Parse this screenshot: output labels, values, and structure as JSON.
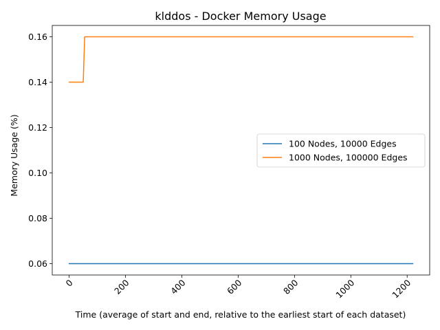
{
  "chart_data": {
    "type": "line",
    "title": "klddos - Docker Memory Usage",
    "xlabel": "Time (average of start and end, relative to the earliest start of each dataset)",
    "ylabel": "Memory Usage (%)",
    "xlim": [
      -60,
      1280
    ],
    "ylim": [
      0.055,
      0.165
    ],
    "xticks": [
      0,
      200,
      400,
      600,
      800,
      1000,
      1200
    ],
    "xtick_labels": [
      "0",
      "200",
      "400",
      "600",
      "800",
      "1000",
      "1200"
    ],
    "yticks": [
      0.06,
      0.08,
      0.1,
      0.12,
      0.14,
      0.16
    ],
    "ytick_labels": [
      "0.06",
      "0.08",
      "0.10",
      "0.12",
      "0.14",
      "0.16"
    ],
    "grid": false,
    "legend_position": "center-right",
    "series": [
      {
        "name": "100 Nodes, 10000 Edges",
        "color": "#1f77b4",
        "x": [
          0,
          1220
        ],
        "y": [
          0.06,
          0.06
        ]
      },
      {
        "name": "1000 Nodes, 100000 Edges",
        "color": "#ff7f0e",
        "x": [
          0,
          50,
          55,
          1220
        ],
        "y": [
          0.14,
          0.14,
          0.16,
          0.16
        ]
      }
    ]
  }
}
